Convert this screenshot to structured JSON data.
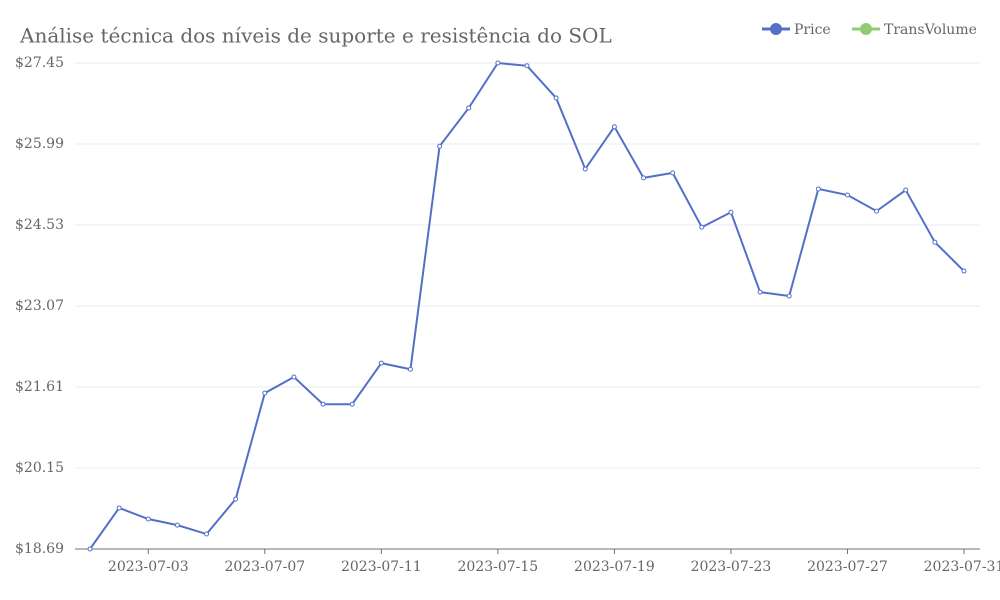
{
  "chart_data": {
    "type": "line",
    "title": "Análise técnica dos níveis de suporte e resistência do SOL",
    "x": [
      "2023-07-01",
      "2023-07-02",
      "2023-07-03",
      "2023-07-04",
      "2023-07-05",
      "2023-07-06",
      "2023-07-07",
      "2023-07-08",
      "2023-07-09",
      "2023-07-10",
      "2023-07-11",
      "2023-07-12",
      "2023-07-13",
      "2023-07-14",
      "2023-07-15",
      "2023-07-16",
      "2023-07-17",
      "2023-07-18",
      "2023-07-19",
      "2023-07-20",
      "2023-07-21",
      "2023-07-22",
      "2023-07-23",
      "2023-07-24",
      "2023-07-25",
      "2023-07-26",
      "2023-07-27",
      "2023-07-28",
      "2023-07-29",
      "2023-07-30",
      "2023-07-31"
    ],
    "series": [
      {
        "name": "Price",
        "color": "#5470c6",
        "values": [
          18.69,
          19.43,
          19.23,
          19.12,
          18.96,
          19.59,
          21.5,
          21.79,
          21.3,
          21.3,
          22.04,
          21.93,
          25.95,
          26.64,
          27.45,
          27.4,
          26.82,
          25.54,
          26.3,
          25.38,
          25.47,
          24.49,
          24.76,
          23.32,
          23.25,
          25.18,
          25.07,
          24.78,
          25.16,
          24.22,
          23.7
        ]
      },
      {
        "name": "TransVolume",
        "color": "#91cc75",
        "values": [
          null,
          null,
          null,
          null,
          null,
          null,
          null,
          null,
          null,
          null,
          null,
          null,
          null,
          null,
          null,
          null,
          null,
          null,
          null,
          null,
          null,
          null,
          null,
          null,
          null,
          null,
          null,
          null,
          null,
          null,
          null
        ]
      }
    ],
    "xticks": [
      "2023-07-03",
      "2023-07-07",
      "2023-07-11",
      "2023-07-15",
      "2023-07-19",
      "2023-07-23",
      "2023-07-27",
      "2023-07-31"
    ],
    "ylim": [
      18.69,
      27.45
    ],
    "yticks": [
      {
        "value": 18.69,
        "label": "$18.69"
      },
      {
        "value": 20.15,
        "label": "$20.15"
      },
      {
        "value": 21.61,
        "label": "$21.61"
      },
      {
        "value": 23.07,
        "label": "$23.07"
      },
      {
        "value": 24.53,
        "label": "$24.53"
      },
      {
        "value": 25.99,
        "label": "$25.99"
      },
      {
        "value": 27.45,
        "label": "$27.45"
      }
    ],
    "grid": true,
    "legend": "top-right"
  }
}
